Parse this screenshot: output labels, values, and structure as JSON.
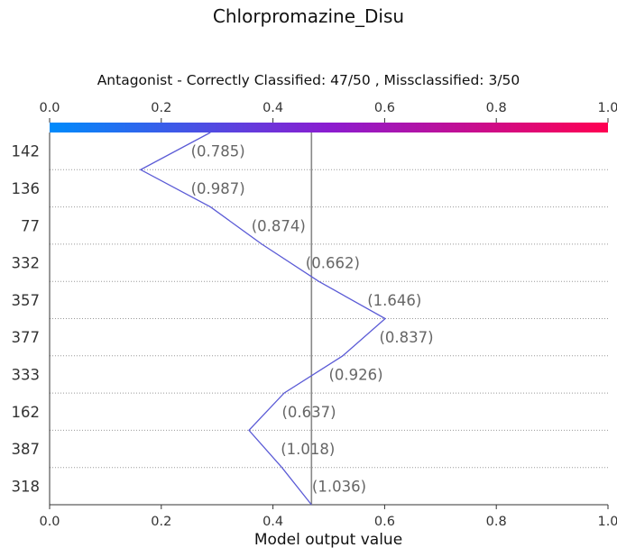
{
  "chart_data": {
    "type": "line",
    "title": "Chlorpromazine_Disu",
    "subtitle": "Antagonist - Correctly Classified: 47/50 , Missclassified: 3/50",
    "xlabel": "Model output value",
    "xlim": [
      0.0,
      1.0
    ],
    "x_ticks": [
      "0.0",
      "0.2",
      "0.4",
      "0.6",
      "0.8",
      "1.0"
    ],
    "x_tick_values": [
      0.0,
      0.2,
      0.4,
      0.6,
      0.8,
      1.0
    ],
    "base_value": 0.469,
    "colorbar": {
      "start": "#008bfb",
      "mid": "#8b1cd0",
      "end": "#ff0052"
    },
    "line_color": "#5b5bd6",
    "grid": "dotted horizontal",
    "features": [
      {
        "label": "142",
        "annotation": "(0.785)",
        "x_top": 0.288,
        "x_bottom": 0.163
      },
      {
        "label": "136",
        "annotation": "(0.987)",
        "x_top": 0.163,
        "x_bottom": 0.288
      },
      {
        "label": "77",
        "annotation": "(0.874)",
        "x_top": 0.288,
        "x_bottom": 0.38
      },
      {
        "label": "332",
        "annotation": "(0.662)",
        "x_top": 0.38,
        "x_bottom": 0.482
      },
      {
        "label": "357",
        "annotation": "(1.646)",
        "x_top": 0.482,
        "x_bottom": 0.601
      },
      {
        "label": "377",
        "annotation": "(0.837)",
        "x_top": 0.601,
        "x_bottom": 0.525
      },
      {
        "label": "333",
        "annotation": "(0.926)",
        "x_top": 0.525,
        "x_bottom": 0.42
      },
      {
        "label": "162",
        "annotation": "(0.637)",
        "x_top": 0.42,
        "x_bottom": 0.357
      },
      {
        "label": "387",
        "annotation": "(1.018)",
        "x_top": 0.357,
        "x_bottom": 0.416
      },
      {
        "label": "318",
        "annotation": "(1.036)",
        "x_top": 0.416,
        "x_bottom": 0.469
      }
    ]
  }
}
